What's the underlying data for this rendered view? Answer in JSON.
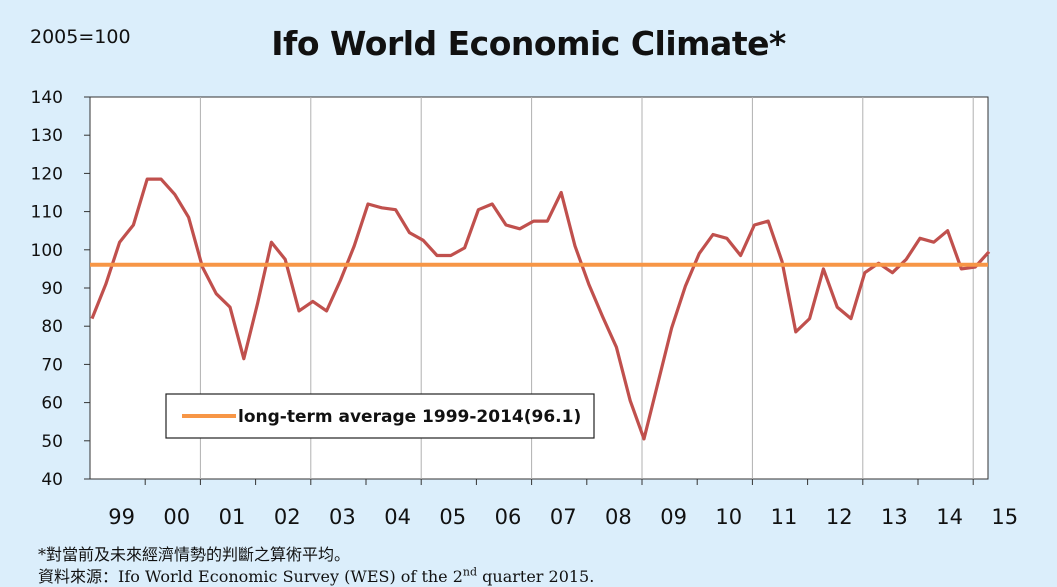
{
  "header": {
    "base_label": "2005=100",
    "title": "Ifo World Economic Climate*"
  },
  "notes": {
    "line1": "*對當前及未來經濟情勢的判斷之算術平均。",
    "line2_prefix": "資料來源：Ifo World Economic Survey (WES) of the 2",
    "line2_sup": "nd",
    "line2_suffix": " quarter 2015."
  },
  "colors": {
    "background": "#dbeefb",
    "plot_area": "#ffffff",
    "series_line": "#c0504d",
    "average_line": "#f79646"
  },
  "chart_data": {
    "type": "line",
    "title": "Ifo World Economic Climate*",
    "xlabel": "",
    "ylabel": "",
    "ylim": [
      40,
      140
    ],
    "yticks": [
      40,
      50,
      60,
      70,
      80,
      90,
      100,
      110,
      120,
      130,
      140
    ],
    "x_tick_labels": [
      "99",
      "00",
      "01",
      "02",
      "03",
      "04",
      "05",
      "06",
      "07",
      "08",
      "09",
      "10",
      "11",
      "12",
      "13",
      "14",
      "15"
    ],
    "grid": "vertical year separators",
    "legend": {
      "position": "bottom-left",
      "entries": [
        "long-term average 1999-2014(96.1)"
      ]
    },
    "series": [
      {
        "values": [
          82,
          91,
          102,
          106.5,
          118.5,
          118.5,
          114.5,
          108.5,
          95.5,
          88.5,
          85,
          71.5,
          86,
          102,
          97.5,
          84,
          86.5,
          84,
          92,
          101,
          112,
          111,
          110.5,
          104.5,
          102.5,
          98.5,
          98.5,
          100.5,
          110.5,
          112,
          106.5,
          105.5,
          107.5,
          107.5,
          115,
          101,
          91,
          82.5,
          74.5,
          60.5,
          50.5,
          65,
          79.5,
          90.5,
          99,
          104,
          103,
          98.5,
          106.5,
          107.5,
          97,
          78.5,
          82,
          95,
          85,
          82,
          94,
          96.5,
          94,
          97.5,
          103,
          102,
          105,
          95,
          95.5,
          99.5
        ],
        "frequency": "quarterly",
        "start": "1999 Q1"
      },
      {
        "name": "long-term average 1999-2014(96.1)",
        "constant": 96.1
      }
    ]
  }
}
